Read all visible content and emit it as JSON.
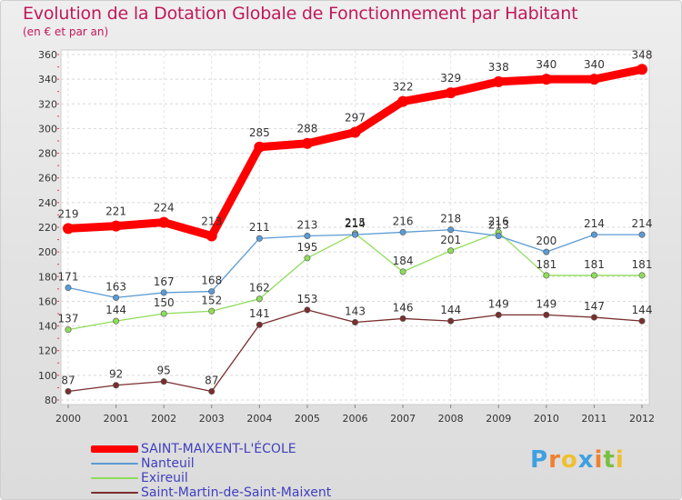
{
  "chart_data": {
    "type": "line",
    "title": "Evolution de la Dotation Globale de Fonctionnement par Habitant",
    "subtitle": "(en € et par an)",
    "xlabel": "",
    "ylabel": "",
    "categories": [
      "2000",
      "2001",
      "2002",
      "2003",
      "2004",
      "2005",
      "2006",
      "2007",
      "2008",
      "2009",
      "2010",
      "2011",
      "2012"
    ],
    "ylim": [
      80,
      360
    ],
    "yticks": [
      80,
      100,
      120,
      140,
      160,
      180,
      200,
      220,
      240,
      260,
      280,
      300,
      320,
      340,
      360
    ],
    "grid": true,
    "series": [
      {
        "name": "SAINT-MAIXENT-L'ÉCOLE",
        "color": "#ff0000",
        "values": [
          219,
          221,
          224,
          213,
          285,
          288,
          297,
          322,
          329,
          338,
          340,
          340,
          348
        ]
      },
      {
        "name": "Nanteuil",
        "color": "#5b9bd5",
        "values": [
          171,
          163,
          167,
          168,
          211,
          213,
          214,
          216,
          218,
          213,
          200,
          214,
          214
        ]
      },
      {
        "name": "Exireuil",
        "color": "#8fdc5a",
        "values": [
          137,
          144,
          150,
          152,
          162,
          195,
          215,
          184,
          201,
          216,
          181,
          181,
          181
        ]
      },
      {
        "name": "Saint-Martin-de-Saint-Maixent",
        "color": "#7a2e2e",
        "values": [
          87,
          92,
          95,
          87,
          141,
          153,
          143,
          146,
          144,
          149,
          149,
          147,
          144
        ]
      }
    ]
  },
  "logo": {
    "letters": [
      "P",
      "r",
      "o",
      "x",
      "i",
      "t",
      "i"
    ],
    "colors": [
      "#3fa0e0",
      "#f08030",
      "#f0c030",
      "#3fa0e0",
      "#f08030",
      "#7ac040",
      "#f0c030"
    ]
  }
}
